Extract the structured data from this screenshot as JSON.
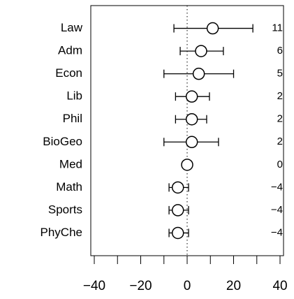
{
  "chart_data": {
    "type": "forest",
    "categories": [
      "Law",
      "Adm",
      "Econ",
      "Lib",
      "Phil",
      "BioGeo",
      "Med",
      "Math",
      "Sports",
      "PhyChe"
    ],
    "values": [
      11,
      6,
      5,
      2,
      2,
      2,
      0,
      -4,
      -4,
      -4
    ],
    "value_labels": [
      "11",
      "6",
      "5",
      "2",
      "2",
      "2",
      "0",
      "−4",
      "−4",
      "−4"
    ],
    "lower": [
      -5.7,
      -3,
      -10,
      -5,
      -5,
      -10,
      0,
      -7.8,
      -7.8,
      -7.8
    ],
    "upper": [
      28.3,
      15.6,
      20,
      9.6,
      8.4,
      13.5,
      0,
      0.6,
      0.6,
      0.6
    ],
    "xlim": [
      -41.5,
      41.5
    ],
    "xticks": [
      {
        "value": -40,
        "label": "−40"
      },
      {
        "value": -20,
        "label": "−20"
      },
      0,
      20,
      40
    ],
    "xticks_minor": [
      -30,
      -10,
      10,
      30
    ],
    "reference_line": 0,
    "color": "#000000"
  }
}
